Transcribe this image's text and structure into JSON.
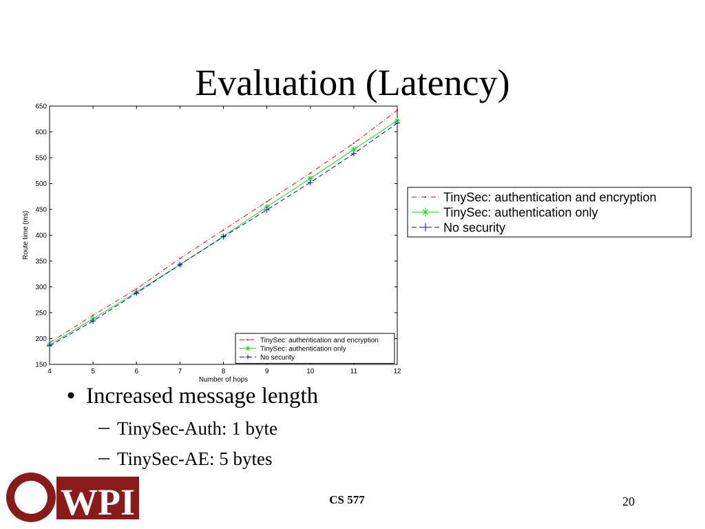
{
  "slide": {
    "title": "Evaluation (Latency)",
    "bullets": [
      {
        "text": "Increased message length",
        "subitems": [
          "TinySec-Auth: 1 byte",
          "TinySec-AE: 5 bytes"
        ]
      }
    ],
    "footer": "CS 577",
    "page_number": "20",
    "logo": "WPI"
  },
  "chart_data": {
    "type": "line",
    "x_label": "Number of hops",
    "y_label": "Route time (ms)",
    "x": [
      4,
      5,
      6,
      7,
      8,
      9,
      10,
      11,
      12
    ],
    "series": [
      {
        "name": "TinySec: authentication and encryption",
        "color": "#ff0000",
        "marker": "dot",
        "dash": "dash-dot",
        "values": [
          192,
          245,
          296,
          355,
          410,
          465,
          520,
          578,
          642
        ]
      },
      {
        "name": "TinySec: authentication only",
        "color": "#00e000",
        "marker": "star",
        "dash": "solid",
        "values": [
          188,
          238,
          290,
          343,
          398,
          455,
          510,
          566,
          622
        ]
      },
      {
        "name": "No security",
        "color": "#0000ff",
        "marker": "plus",
        "dash": "dashed",
        "values": [
          186,
          234,
          288,
          343,
          397,
          449,
          502,
          558,
          617
        ]
      }
    ],
    "xlim": [
      4,
      12
    ],
    "xticks": [
      4,
      5,
      6,
      7,
      8,
      9,
      10,
      11,
      12
    ],
    "ylim": [
      150,
      650
    ],
    "yticks": [
      150,
      200,
      250,
      300,
      350,
      400,
      450,
      500,
      550,
      600,
      650
    ],
    "legend": "lower right"
  }
}
